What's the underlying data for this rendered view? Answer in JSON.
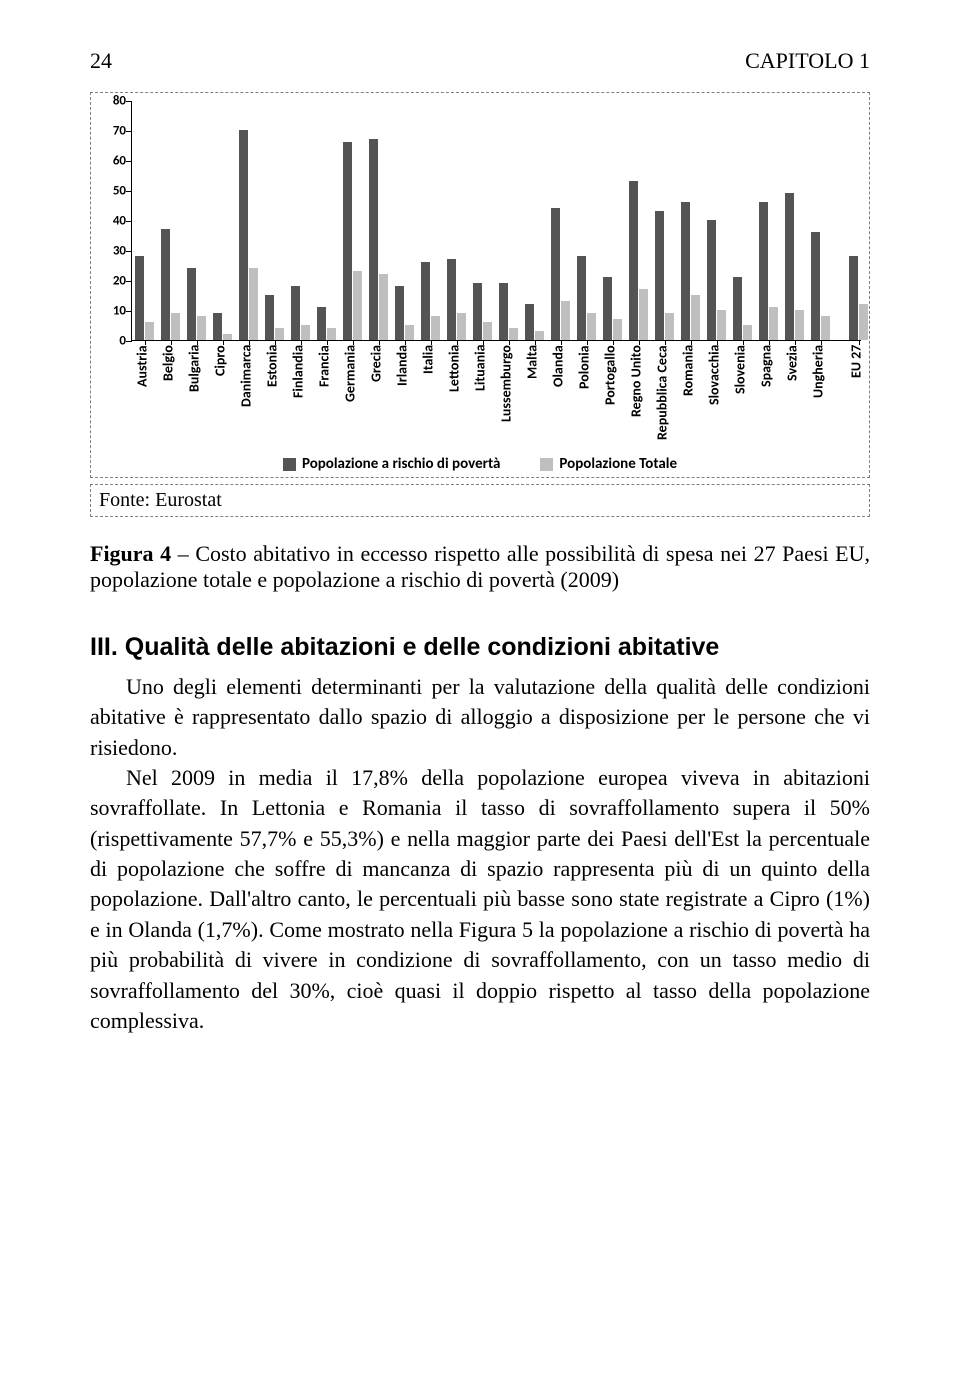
{
  "header": {
    "page_num": "24",
    "chapter": "CAPITOLO 1"
  },
  "chart": {
    "type": "bar",
    "ylim": [
      0,
      80
    ],
    "ytick_step": 10,
    "yticks": [
      0,
      10,
      20,
      30,
      40,
      50,
      60,
      70,
      80
    ],
    "series": [
      {
        "name": "risk",
        "color": "#545454"
      },
      {
        "name": "total",
        "color": "#bfbfbf"
      }
    ],
    "categories": [
      {
        "label": "Austria",
        "risk": 28,
        "total": 6,
        "gap_after": 4
      },
      {
        "label": "Belgio",
        "risk": 37,
        "total": 9,
        "gap_after": 4
      },
      {
        "label": "Bulgaria",
        "risk": 24,
        "total": 8,
        "gap_after": 4
      },
      {
        "label": "Cipro",
        "risk": 9,
        "total": 2,
        "gap_after": 4
      },
      {
        "label": "Danimarca",
        "risk": 70,
        "total": 24,
        "gap_after": 4
      },
      {
        "label": "Estonia",
        "risk": 15,
        "total": 4,
        "gap_after": 4
      },
      {
        "label": "Finlandia",
        "risk": 18,
        "total": 5,
        "gap_after": 4
      },
      {
        "label": "Francia",
        "risk": 11,
        "total": 4,
        "gap_after": 4
      },
      {
        "label": "Germania",
        "risk": 66,
        "total": 23,
        "gap_after": 4
      },
      {
        "label": "Grecia",
        "risk": 67,
        "total": 22,
        "gap_after": 4
      },
      {
        "label": "Irlanda",
        "risk": 18,
        "total": 5,
        "gap_after": 4
      },
      {
        "label": "Italia",
        "risk": 26,
        "total": 8,
        "gap_after": 4
      },
      {
        "label": "Lettonia",
        "risk": 27,
        "total": 9,
        "gap_after": 4
      },
      {
        "label": "Lituania",
        "risk": 19,
        "total": 6,
        "gap_after": 4
      },
      {
        "label": "Lussemburgo",
        "risk": 19,
        "total": 4,
        "gap_after": 4
      },
      {
        "label": "Malta",
        "risk": 12,
        "total": 3,
        "gap_after": 4
      },
      {
        "label": "Olanda",
        "risk": 44,
        "total": 13,
        "gap_after": 4
      },
      {
        "label": "Polonia",
        "risk": 28,
        "total": 9,
        "gap_after": 4
      },
      {
        "label": "Portogallo",
        "risk": 21,
        "total": 7,
        "gap_after": 4
      },
      {
        "label": "Regno Unito",
        "risk": 53,
        "total": 17,
        "gap_after": 4
      },
      {
        "label": "Repubblica Ceca",
        "risk": 43,
        "total": 9,
        "gap_after": 4
      },
      {
        "label": "Romania",
        "risk": 46,
        "total": 15,
        "gap_after": 4
      },
      {
        "label": "Slovacchia",
        "risk": 40,
        "total": 10,
        "gap_after": 4
      },
      {
        "label": "Slovenia",
        "risk": 21,
        "total": 5,
        "gap_after": 4
      },
      {
        "label": "Spagna",
        "risk": 46,
        "total": 11,
        "gap_after": 4
      },
      {
        "label": "Svezia",
        "risk": 49,
        "total": 10,
        "gap_after": 4
      },
      {
        "label": "Ungheria",
        "risk": 36,
        "total": 8,
        "gap_after": 16
      },
      {
        "label": "EU 27",
        "risk": 28,
        "total": 12,
        "gap_after": 0
      }
    ],
    "legend": {
      "risk": "Popolazione a rischio di povertà",
      "total": "Popolazione Totale"
    },
    "background": "#ffffff",
    "axis_color": "#000000",
    "label_fontsize": 13
  },
  "source": {
    "prefix": "Fonte: ",
    "value": "Eurostat"
  },
  "fig_caption": {
    "prefix": "Figura 4",
    "sep": " – ",
    "text": "Costo abitativo in eccesso rispetto alle possibilità di spesa nei 27 Paesi EU, popolazione totale e popolazione a rischio di povertà (2009)"
  },
  "section": {
    "number": "III.",
    "title": "Qualità delle abitazioni e delle condizioni abitative",
    "body": "Uno degli elementi determinanti per la valutazione della qualità delle condizioni abitative è rappresentato dallo spazio di alloggio a disposizione per le persone che vi risiedono.\nNel 2009 in media il 17,8% della popolazione europea viveva in abitazioni sovraffollate. In Lettonia e Romania il tasso di sovraffollamento supera il 50% (rispettivamente 57,7% e 55,3%) e nella maggior parte dei Paesi dell'Est la percentuale di popolazione che soffre di mancanza di spazio rappresenta più di un quinto della popolazione. Dall'altro canto, le percentuali più basse sono state registrate a Cipro (1%) e in Olanda (1,7%). Come mostrato nella Figura 5 la popolazione a rischio di povertà ha più probabilità di vivere in condizione di sovraffollamento, con un tasso medio di sovraffollamento del 30%, cioè quasi il doppio rispetto al tasso della popolazione complessiva."
  }
}
